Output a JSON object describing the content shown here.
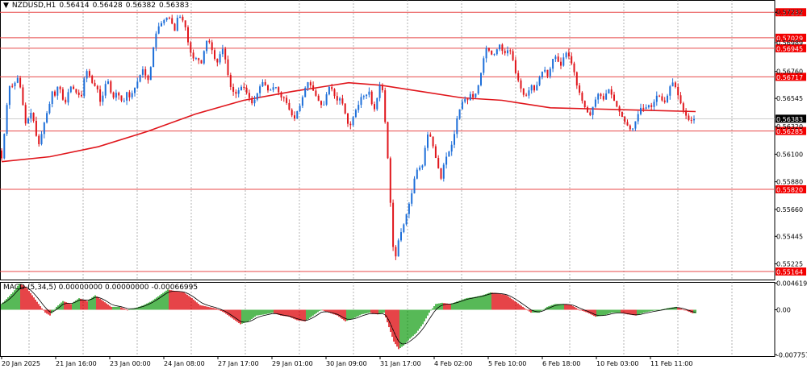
{
  "header": {
    "symbol_label": "NZDUSD,H1",
    "open": "0.56414",
    "high": "0.56428",
    "low": "0.56382",
    "close": "0.56383"
  },
  "macd_header": {
    "label": "MACD",
    "params": "(5,34,5)",
    "v1": "0.00000000",
    "v2": "0.00000000",
    "v3": "-0.00066995"
  },
  "colors": {
    "bull": "#1e6fd9",
    "bear": "#e0161c",
    "ma": "#e0161c",
    "level_line": "#e84a4a",
    "level_box": "#f20000",
    "grid": "#808080",
    "macd_up": "#2ea82e",
    "macd_down": "#e0161c",
    "signal": "#000000"
  },
  "chart_data": {
    "type": "candlestick",
    "title": "NZDUSD,H1",
    "ylim": [
      0.551,
      0.5733
    ],
    "y_ticks": [
      "0.57232",
      "0.56989",
      "0.56760",
      "0.56545",
      "0.56320",
      "0.56100",
      "0.55880",
      "0.55660",
      "0.55445",
      "0.55225"
    ],
    "x_ticks": [
      "20 Jan 2025",
      "21 Jan 16:00",
      "23 Jan 00:00",
      "24 Jan 08:00",
      "27 Jan 17:00",
      "29 Jan 01:00",
      "30 Jan 09:00",
      "31 Jan 17:00",
      "4 Feb 02:00",
      "5 Feb 10:00",
      "6 Feb 18:00",
      "10 Feb 03:00",
      "11 Feb 11:00"
    ],
    "levels": [
      "0.57232",
      "0.57029",
      "0.56945",
      "0.56717",
      "0.56285",
      "0.55820",
      "0.55164"
    ],
    "current_price": "0.56383",
    "price_path": [
      [
        0,
        0.5613
      ],
      [
        3,
        0.5605
      ],
      [
        6,
        0.5622
      ],
      [
        10,
        0.565
      ],
      [
        14,
        0.5668
      ],
      [
        18,
        0.5662
      ],
      [
        22,
        0.5673
      ],
      [
        26,
        0.5665
      ],
      [
        30,
        0.5648
      ],
      [
        34,
        0.563
      ],
      [
        38,
        0.5645
      ],
      [
        42,
        0.564
      ],
      [
        46,
        0.5625
      ],
      [
        50,
        0.5617
      ],
      [
        54,
        0.563
      ],
      [
        58,
        0.564
      ],
      [
        62,
        0.5648
      ],
      [
        66,
        0.566
      ],
      [
        70,
        0.5656
      ],
      [
        74,
        0.5668
      ],
      [
        78,
        0.5655
      ],
      [
        82,
        0.565
      ],
      [
        86,
        0.566
      ],
      [
        90,
        0.5665
      ],
      [
        94,
        0.566
      ],
      [
        98,
        0.5658
      ],
      [
        102,
        0.5655
      ],
      [
        106,
        0.5672
      ],
      [
        110,
        0.5678
      ],
      [
        114,
        0.5668
      ],
      [
        118,
        0.5665
      ],
      [
        122,
        0.5662
      ],
      [
        126,
        0.565
      ],
      [
        130,
        0.566
      ],
      [
        134,
        0.5672
      ],
      [
        138,
        0.566
      ],
      [
        142,
        0.5655
      ],
      [
        146,
        0.566
      ],
      [
        150,
        0.5655
      ],
      [
        154,
        0.565
      ],
      [
        158,
        0.566
      ],
      [
        162,
        0.5655
      ],
      [
        166,
        0.566
      ],
      [
        170,
        0.5665
      ],
      [
        174,
        0.5672
      ],
      [
        178,
        0.5678
      ],
      [
        182,
        0.5672
      ],
      [
        186,
        0.5668
      ],
      [
        190,
        0.569
      ],
      [
        194,
        0.5705
      ],
      [
        198,
        0.5712
      ],
      [
        202,
        0.5715
      ],
      [
        206,
        0.5718
      ],
      [
        210,
        0.572
      ],
      [
        214,
        0.5715
      ],
      [
        218,
        0.5708
      ],
      [
        222,
        0.5722
      ],
      [
        226,
        0.5718
      ],
      [
        230,
        0.5715
      ],
      [
        234,
        0.57
      ],
      [
        238,
        0.569
      ],
      [
        242,
        0.5685
      ],
      [
        246,
        0.5688
      ],
      [
        250,
        0.568
      ],
      [
        254,
        0.5692
      ],
      [
        258,
        0.5702
      ],
      [
        262,
        0.5698
      ],
      [
        266,
        0.5688
      ],
      [
        270,
        0.5682
      ],
      [
        274,
        0.569
      ],
      [
        278,
        0.5695
      ],
      [
        282,
        0.568
      ],
      [
        286,
        0.5665
      ],
      [
        290,
        0.566
      ],
      [
        294,
        0.5658
      ],
      [
        298,
        0.5662
      ],
      [
        302,
        0.5665
      ],
      [
        306,
        0.566
      ],
      [
        310,
        0.5655
      ],
      [
        314,
        0.565
      ],
      [
        318,
        0.5655
      ],
      [
        322,
        0.5662
      ],
      [
        326,
        0.5668
      ],
      [
        330,
        0.5665
      ],
      [
        334,
        0.566
      ],
      [
        338,
        0.5662
      ],
      [
        342,
        0.5665
      ],
      [
        346,
        0.566
      ],
      [
        350,
        0.5655
      ],
      [
        354,
        0.5655
      ],
      [
        358,
        0.5648
      ],
      [
        362,
        0.5642
      ],
      [
        366,
        0.5638
      ],
      [
        370,
        0.5645
      ],
      [
        374,
        0.565
      ],
      [
        378,
        0.566
      ],
      [
        382,
        0.5668
      ],
      [
        386,
        0.5665
      ],
      [
        390,
        0.566
      ],
      [
        394,
        0.5655
      ],
      [
        398,
        0.565
      ],
      [
        402,
        0.5648
      ],
      [
        406,
        0.5658
      ],
      [
        410,
        0.5665
      ],
      [
        414,
        0.566
      ],
      [
        418,
        0.5652
      ],
      [
        422,
        0.5655
      ],
      [
        426,
        0.565
      ],
      [
        430,
        0.564
      ],
      [
        434,
        0.563
      ],
      [
        438,
        0.5638
      ],
      [
        442,
        0.5645
      ],
      [
        446,
        0.565
      ],
      [
        450,
        0.5658
      ],
      [
        454,
        0.5655
      ],
      [
        458,
        0.5662
      ],
      [
        462,
        0.565
      ],
      [
        466,
        0.5645
      ],
      [
        470,
        0.566
      ],
      [
        474,
        0.567
      ],
      [
        478,
        0.564
      ],
      [
        482,
        0.5605
      ],
      [
        484,
        0.5585
      ],
      [
        486,
        0.556
      ],
      [
        488,
        0.554
      ],
      [
        490,
        0.552
      ],
      [
        492,
        0.553
      ],
      [
        496,
        0.5545
      ],
      [
        500,
        0.555
      ],
      [
        504,
        0.556
      ],
      [
        508,
        0.557
      ],
      [
        512,
        0.558
      ],
      [
        516,
        0.5595
      ],
      [
        520,
        0.56
      ],
      [
        524,
        0.5598
      ],
      [
        528,
        0.5615
      ],
      [
        532,
        0.5628
      ],
      [
        536,
        0.5622
      ],
      [
        540,
        0.561
      ],
      [
        544,
        0.56
      ],
      [
        548,
        0.559
      ],
      [
        552,
        0.5605
      ],
      [
        556,
        0.561
      ],
      [
        560,
        0.5615
      ],
      [
        564,
        0.5625
      ],
      [
        568,
        0.564
      ],
      [
        572,
        0.5648
      ],
      [
        576,
        0.5655
      ],
      [
        580,
        0.5652
      ],
      [
        584,
        0.5658
      ],
      [
        588,
        0.5655
      ],
      [
        592,
        0.566
      ],
      [
        596,
        0.567
      ],
      [
        600,
        0.5685
      ],
      [
        604,
        0.5695
      ],
      [
        608,
        0.5692
      ],
      [
        612,
        0.5688
      ],
      [
        616,
        0.5692
      ],
      [
        620,
        0.5698
      ],
      [
        624,
        0.5692
      ],
      [
        628,
        0.569
      ],
      [
        632,
        0.5695
      ],
      [
        636,
        0.5688
      ],
      [
        640,
        0.5675
      ],
      [
        644,
        0.5668
      ],
      [
        648,
        0.566
      ],
      [
        652,
        0.5655
      ],
      [
        656,
        0.566
      ],
      [
        660,
        0.5665
      ],
      [
        664,
        0.566
      ],
      [
        668,
        0.5668
      ],
      [
        672,
        0.5675
      ],
      [
        676,
        0.5678
      ],
      [
        680,
        0.5672
      ],
      [
        684,
        0.568
      ],
      [
        688,
        0.569
      ],
      [
        692,
        0.5685
      ],
      [
        696,
        0.568
      ],
      [
        700,
        0.5688
      ],
      [
        704,
        0.5692
      ],
      [
        708,
        0.5685
      ],
      [
        712,
        0.5678
      ],
      [
        716,
        0.5665
      ],
      [
        720,
        0.5658
      ],
      [
        724,
        0.565
      ],
      [
        728,
        0.5645
      ],
      [
        732,
        0.564
      ],
      [
        736,
        0.5648
      ],
      [
        740,
        0.5655
      ],
      [
        744,
        0.566
      ],
      [
        748,
        0.5652
      ],
      [
        752,
        0.5658
      ],
      [
        756,
        0.5662
      ],
      [
        760,
        0.5656
      ],
      [
        764,
        0.565
      ],
      [
        768,
        0.5645
      ],
      [
        772,
        0.564
      ],
      [
        776,
        0.5635
      ],
      [
        780,
        0.5632
      ],
      [
        784,
        0.5628
      ],
      [
        788,
        0.5635
      ],
      [
        792,
        0.5642
      ],
      [
        796,
        0.5648
      ],
      [
        800,
        0.5645
      ],
      [
        804,
        0.565
      ],
      [
        808,
        0.5647
      ],
      [
        812,
        0.5652
      ],
      [
        816,
        0.5658
      ],
      [
        820,
        0.5655
      ],
      [
        824,
        0.565
      ],
      [
        828,
        0.5656
      ],
      [
        832,
        0.5665
      ],
      [
        836,
        0.5668
      ],
      [
        840,
        0.566
      ],
      [
        844,
        0.5652
      ],
      [
        848,
        0.5645
      ],
      [
        852,
        0.564
      ],
      [
        856,
        0.5636
      ],
      [
        860,
        0.5638
      ]
    ],
    "ma_path": [
      [
        0,
        0.5604
      ],
      [
        60,
        0.5608
      ],
      [
        120,
        0.5616
      ],
      [
        180,
        0.5628
      ],
      [
        240,
        0.5642
      ],
      [
        300,
        0.5653
      ],
      [
        360,
        0.566
      ],
      [
        400,
        0.5664
      ],
      [
        430,
        0.5667
      ],
      [
        470,
        0.5665
      ],
      [
        520,
        0.566
      ],
      [
        570,
        0.5655
      ],
      [
        620,
        0.5653
      ],
      [
        680,
        0.5647
      ],
      [
        740,
        0.5646
      ],
      [
        800,
        0.5645
      ],
      [
        860,
        0.5644
      ]
    ],
    "macd": {
      "ylim": [
        -0.008,
        0.0048
      ],
      "y_ticks": [
        "0.0046198",
        "0.00",
        "-0.0077573"
      ],
      "path": [
        [
          0,
          0.001
        ],
        [
          14,
          0.003
        ],
        [
          22,
          0.0045
        ],
        [
          30,
          0.004
        ],
        [
          38,
          0.0025
        ],
        [
          46,
          0.001
        ],
        [
          54,
          -0.0005
        ],
        [
          60,
          -0.001
        ],
        [
          68,
          0.0005
        ],
        [
          76,
          0.0015
        ],
        [
          86,
          0.001
        ],
        [
          96,
          0.002
        ],
        [
          106,
          0.0015
        ],
        [
          116,
          0.0025
        ],
        [
          126,
          0.0015
        ],
        [
          136,
          0.0005
        ],
        [
          146,
          0.0005
        ],
        [
          156,
          0.0
        ],
        [
          166,
          0.0003
        ],
        [
          176,
          0.0008
        ],
        [
          186,
          0.0015
        ],
        [
          196,
          0.0025
        ],
        [
          206,
          0.0035
        ],
        [
          216,
          0.0032
        ],
        [
          226,
          0.003
        ],
        [
          236,
          0.002
        ],
        [
          246,
          0.0008
        ],
        [
          256,
          0.0005
        ],
        [
          266,
          0.0002
        ],
        [
          276,
          -0.0005
        ],
        [
          286,
          -0.0015
        ],
        [
          296,
          -0.0025
        ],
        [
          306,
          -0.002
        ],
        [
          316,
          -0.001
        ],
        [
          326,
          -0.0008
        ],
        [
          336,
          -0.0005
        ],
        [
          346,
          -0.001
        ],
        [
          356,
          -0.0012
        ],
        [
          366,
          -0.0018
        ],
        [
          376,
          -0.002
        ],
        [
          386,
          -0.001
        ],
        [
          396,
          0.0
        ],
        [
          406,
          -0.0005
        ],
        [
          416,
          -0.001
        ],
        [
          426,
          -0.002
        ],
        [
          436,
          -0.0015
        ],
        [
          446,
          -0.0008
        ],
        [
          456,
          -0.0005
        ],
        [
          466,
          -0.0008
        ],
        [
          474,
          -0.0005
        ],
        [
          480,
          -0.003
        ],
        [
          486,
          -0.0055
        ],
        [
          492,
          -0.0068
        ],
        [
          498,
          -0.0062
        ],
        [
          506,
          -0.005
        ],
        [
          514,
          -0.004
        ],
        [
          522,
          -0.0025
        ],
        [
          530,
          -0.0005
        ],
        [
          538,
          0.001
        ],
        [
          546,
          0.0012
        ],
        [
          556,
          0.001
        ],
        [
          566,
          0.0015
        ],
        [
          576,
          0.002
        ],
        [
          586,
          0.0022
        ],
        [
          596,
          0.0025
        ],
        [
          606,
          0.003
        ],
        [
          616,
          0.0028
        ],
        [
          626,
          0.0025
        ],
        [
          636,
          0.0015
        ],
        [
          646,
          0.0005
        ],
        [
          656,
          -0.0005
        ],
        [
          666,
          -0.0005
        ],
        [
          676,
          0.0005
        ],
        [
          686,
          0.001
        ],
        [
          696,
          0.001
        ],
        [
          706,
          0.0008
        ],
        [
          716,
          0.0
        ],
        [
          726,
          -0.0005
        ],
        [
          736,
          -0.0012
        ],
        [
          746,
          -0.001
        ],
        [
          756,
          -0.0005
        ],
        [
          766,
          -0.0005
        ],
        [
          776,
          -0.0008
        ],
        [
          786,
          -0.001
        ],
        [
          796,
          -0.0005
        ],
        [
          806,
          -0.0002
        ],
        [
          816,
          0.0
        ],
        [
          826,
          0.0003
        ],
        [
          836,
          0.0005
        ],
        [
          846,
          0.0
        ],
        [
          856,
          -0.0006
        ]
      ]
    }
  }
}
